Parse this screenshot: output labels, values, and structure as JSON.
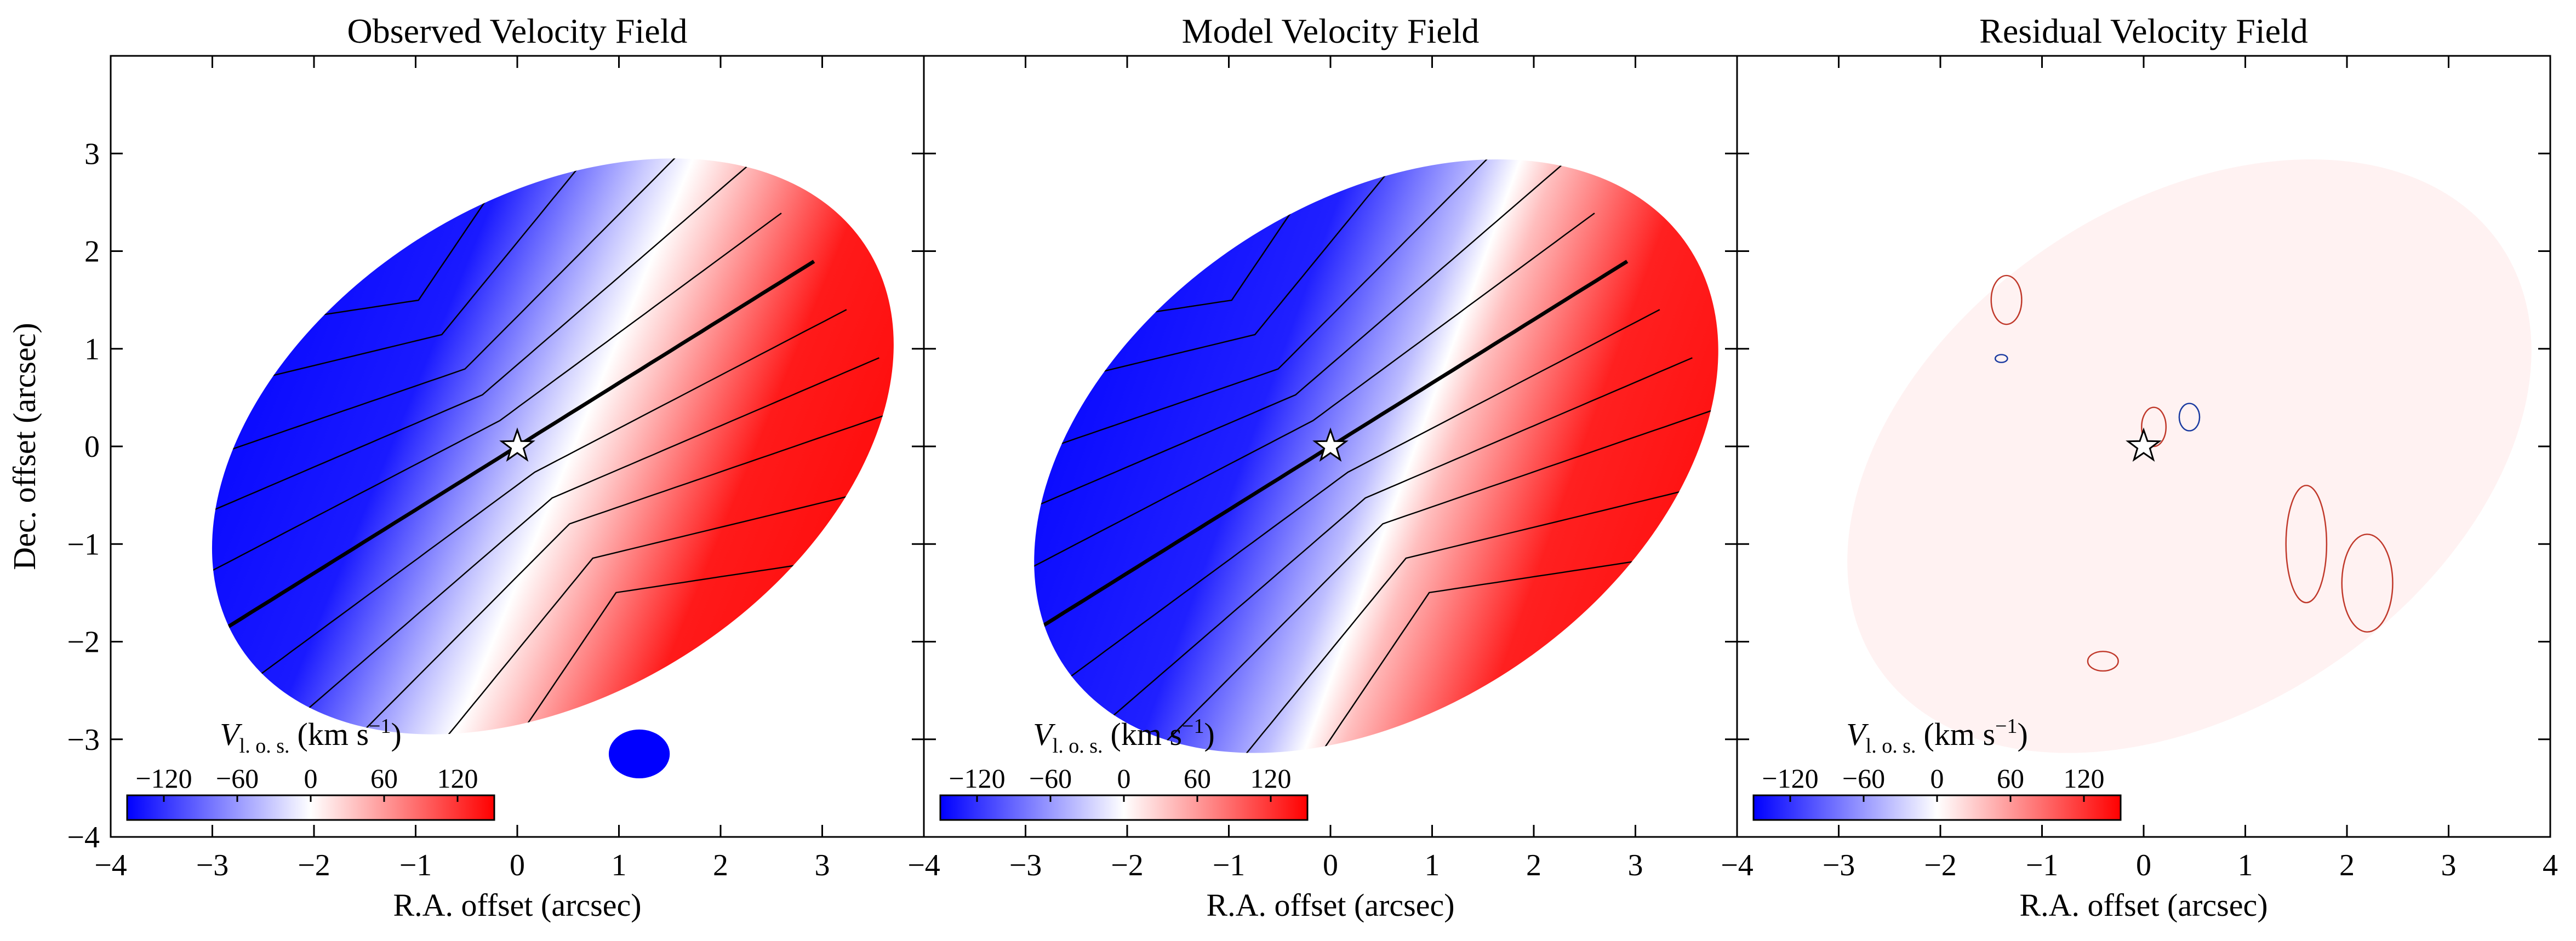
{
  "chart_data": {
    "type": "heatmap",
    "ylabel": "Dec. offset (arcsec)",
    "colormap": {
      "low": "#0000ff",
      "mid": "#ffffff",
      "high": "#ff0000"
    },
    "panels": [
      {
        "id": "observed",
        "title": "Observed Velocity Field",
        "xlabel": "R.A. offset (arcsec)",
        "xlim": [
          -4,
          4
        ],
        "ylim": [
          -4,
          4
        ],
        "xticks": [
          "−4",
          "−3",
          "−2",
          "−1",
          "0",
          "1",
          "2",
          "3"
        ],
        "show_yticklabels": true,
        "colorbar": {
          "label_main": "V",
          "label_sub": "l. o. s.",
          "label_unit": "(km s",
          "label_exp": "−1",
          "label_close": ")",
          "ticks": [
            "−120",
            "−60",
            "0",
            "60",
            "120"
          ],
          "range": [
            -150,
            150
          ]
        },
        "center_marker": {
          "ra": 0,
          "dec": 0
        },
        "pa_deg": 33,
        "ellipse": {
          "cx": 0.35,
          "cy": 0.0,
          "a": 3.7,
          "b": 2.5,
          "pa_deg": 145
        },
        "velocity_amplitude": 150
      },
      {
        "id": "model",
        "title": "Model Velocity Field",
        "xlabel": "R.A. offset (arcsec)",
        "xlim": [
          -4,
          4
        ],
        "ylim": [
          -4,
          4
        ],
        "xticks": [
          "−4",
          "−3",
          "−2",
          "−1",
          "0",
          "1",
          "2",
          "3"
        ],
        "show_yticklabels": false,
        "colorbar": {
          "label_main": "V",
          "label_sub": "l. o. s.",
          "label_unit": "(km s",
          "label_exp": "−1",
          "label_close": ")",
          "ticks": [
            "−120",
            "−60",
            "0",
            "60",
            "120"
          ],
          "range": [
            -150,
            150
          ]
        },
        "center_marker": {
          "ra": 0,
          "dec": 0
        },
        "pa_deg": 33,
        "ellipse": {
          "cx": 0.45,
          "cy": -0.1,
          "a": 3.75,
          "b": 2.55,
          "pa_deg": 143
        },
        "velocity_amplitude": 150
      },
      {
        "id": "residual",
        "title": "Residual Velocity Field",
        "xlabel": "R.A. offset (arcsec)",
        "xlim": [
          -4,
          4
        ],
        "ylim": [
          -4,
          4
        ],
        "xticks": [
          "−4",
          "−3",
          "−2",
          "−1",
          "0",
          "1",
          "2",
          "3",
          "4"
        ],
        "show_yticklabels": false,
        "colorbar": {
          "label_main": "V",
          "label_sub": "l. o. s.",
          "label_unit": "(km s",
          "label_exp": "−1",
          "label_close": ")",
          "ticks": [
            "−120",
            "−60",
            "0",
            "60",
            "120"
          ],
          "range": [
            -150,
            150
          ]
        },
        "center_marker": {
          "ra": 0,
          "dec": 0
        },
        "pa_deg": 33,
        "ellipse": {
          "cx": 0.45,
          "cy": -0.1,
          "a": 3.75,
          "b": 2.55,
          "pa_deg": 143
        },
        "velocity_amplitude": 18
      }
    ],
    "yticks": [
      "−4",
      "−3",
      "−2",
      "−1",
      "0",
      "1",
      "2",
      "3"
    ]
  }
}
